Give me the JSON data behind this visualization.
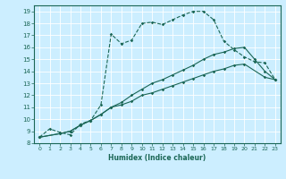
{
  "xlabel": "Humidex (Indice chaleur)",
  "bg_color": "#cceeff",
  "line_color": "#1a6655",
  "grid_color": "#ffffff",
  "xlim": [
    -0.5,
    23.5
  ],
  "ylim": [
    8,
    19.5
  ],
  "xticks": [
    0,
    1,
    2,
    3,
    4,
    5,
    6,
    7,
    8,
    9,
    10,
    11,
    12,
    13,
    14,
    15,
    16,
    17,
    18,
    19,
    20,
    21,
    22,
    23
  ],
  "yticks": [
    8,
    9,
    10,
    11,
    12,
    13,
    14,
    15,
    16,
    17,
    18,
    19
  ],
  "series": [
    {
      "x": [
        0,
        1,
        2,
        3,
        4,
        5,
        6,
        7,
        8,
        9,
        10,
        11,
        12,
        13,
        14,
        15,
        16,
        17,
        18,
        19,
        20,
        21,
        22,
        23
      ],
      "y": [
        8.5,
        9.2,
        8.9,
        8.7,
        9.6,
        9.9,
        11.2,
        17.1,
        16.3,
        16.6,
        18.0,
        18.1,
        17.9,
        18.3,
        18.7,
        19.0,
        19.0,
        18.3,
        16.5,
        15.8,
        15.2,
        14.8,
        14.7,
        13.3
      ],
      "dashed": true
    },
    {
      "x": [
        0,
        2,
        3,
        4,
        5,
        6,
        7,
        8,
        9,
        10,
        11,
        12,
        13,
        14,
        15,
        16,
        17,
        18,
        19,
        20,
        21,
        22,
        23
      ],
      "y": [
        8.5,
        8.8,
        9.0,
        9.5,
        9.9,
        10.4,
        11.0,
        11.4,
        12.0,
        12.5,
        13.0,
        13.3,
        13.7,
        14.1,
        14.5,
        15.0,
        15.4,
        15.6,
        15.9,
        16.0,
        15.0,
        14.0,
        13.3
      ],
      "dashed": false
    },
    {
      "x": [
        0,
        2,
        3,
        4,
        5,
        6,
        7,
        8,
        9,
        10,
        11,
        12,
        13,
        14,
        15,
        16,
        17,
        18,
        19,
        20,
        22,
        23
      ],
      "y": [
        8.5,
        8.8,
        9.0,
        9.5,
        9.9,
        10.4,
        11.0,
        11.2,
        11.5,
        12.0,
        12.2,
        12.5,
        12.8,
        13.1,
        13.4,
        13.7,
        14.0,
        14.2,
        14.5,
        14.6,
        13.5,
        13.3
      ],
      "dashed": false
    }
  ]
}
